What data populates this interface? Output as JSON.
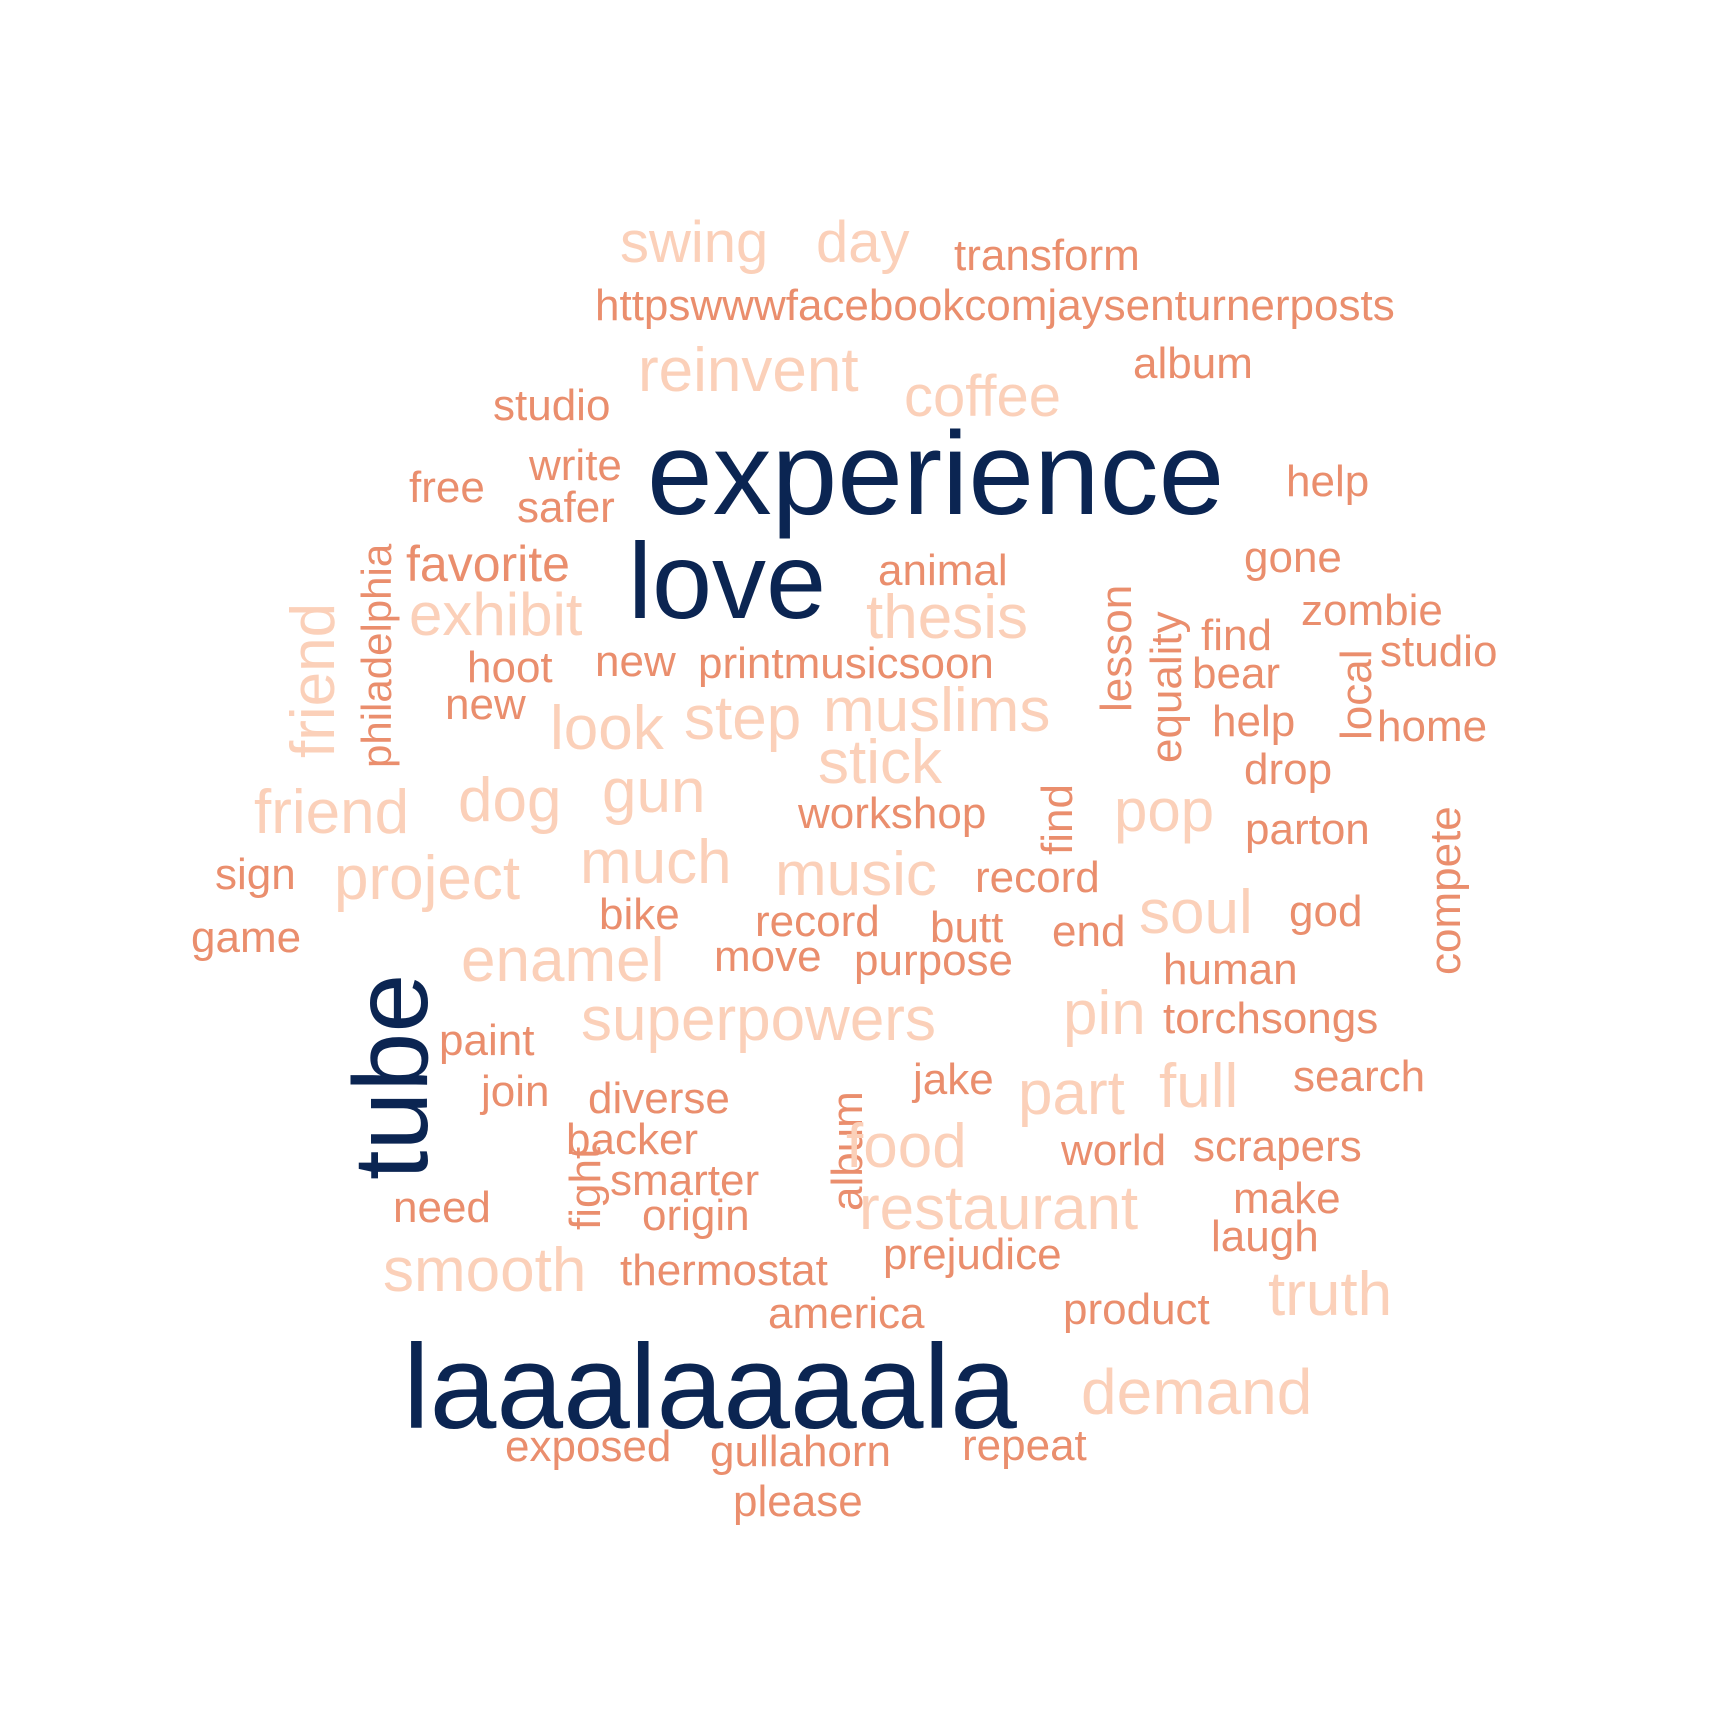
{
  "palette": {
    "dark": "#0b2552",
    "mid": "#ea8e6d",
    "light": "#fbd0b9"
  },
  "words": [
    {
      "text": "experience",
      "tone": "dark"
    },
    {
      "text": "love",
      "tone": "dark"
    },
    {
      "text": "tube",
      "tone": "dark"
    },
    {
      "text": "laaalaaaala",
      "tone": "dark"
    },
    {
      "text": "swing",
      "tone": "light"
    },
    {
      "text": "day",
      "tone": "light"
    },
    {
      "text": "transform",
      "tone": "mid"
    },
    {
      "text": "httpswwwfacebookcomjaysenturnerposts",
      "tone": "mid"
    },
    {
      "text": "reinvent",
      "tone": "light"
    },
    {
      "text": "album",
      "tone": "mid"
    },
    {
      "text": "coffee",
      "tone": "light"
    },
    {
      "text": "studio",
      "tone": "mid"
    },
    {
      "text": "write",
      "tone": "mid"
    },
    {
      "text": "free",
      "tone": "mid"
    },
    {
      "text": "help",
      "tone": "mid"
    },
    {
      "text": "safer",
      "tone": "mid"
    },
    {
      "text": "philadelphia",
      "tone": "mid"
    },
    {
      "text": "favorite",
      "tone": "mid"
    },
    {
      "text": "gone",
      "tone": "mid"
    },
    {
      "text": "animal",
      "tone": "mid"
    },
    {
      "text": "lesson",
      "tone": "mid"
    },
    {
      "text": "equality",
      "tone": "mid"
    },
    {
      "text": "friend",
      "tone": "light"
    },
    {
      "text": "exhibit",
      "tone": "light"
    },
    {
      "text": "thesis",
      "tone": "light"
    },
    {
      "text": "zombie",
      "tone": "mid"
    },
    {
      "text": "find",
      "tone": "mid"
    },
    {
      "text": "local",
      "tone": "mid"
    },
    {
      "text": "studio",
      "tone": "mid"
    },
    {
      "text": "hoot",
      "tone": "mid"
    },
    {
      "text": "new",
      "tone": "mid"
    },
    {
      "text": "printmusicsoon",
      "tone": "mid"
    },
    {
      "text": "bear",
      "tone": "mid"
    },
    {
      "text": "new",
      "tone": "mid"
    },
    {
      "text": "look",
      "tone": "light"
    },
    {
      "text": "step",
      "tone": "light"
    },
    {
      "text": "muslims",
      "tone": "light"
    },
    {
      "text": "help",
      "tone": "mid"
    },
    {
      "text": "home",
      "tone": "mid"
    },
    {
      "text": "stick",
      "tone": "light"
    },
    {
      "text": "drop",
      "tone": "mid"
    },
    {
      "text": "friend",
      "tone": "light"
    },
    {
      "text": "dog",
      "tone": "light"
    },
    {
      "text": "gun",
      "tone": "light"
    },
    {
      "text": "find",
      "tone": "mid"
    },
    {
      "text": "workshop",
      "tone": "mid"
    },
    {
      "text": "pop",
      "tone": "light"
    },
    {
      "text": "compete",
      "tone": "mid"
    },
    {
      "text": "parton",
      "tone": "mid"
    },
    {
      "text": "sign",
      "tone": "mid"
    },
    {
      "text": "project",
      "tone": "light"
    },
    {
      "text": "much",
      "tone": "light"
    },
    {
      "text": "music",
      "tone": "light"
    },
    {
      "text": "record",
      "tone": "mid"
    },
    {
      "text": "soul",
      "tone": "light"
    },
    {
      "text": "god",
      "tone": "mid"
    },
    {
      "text": "game",
      "tone": "mid"
    },
    {
      "text": "bike",
      "tone": "mid"
    },
    {
      "text": "record",
      "tone": "mid"
    },
    {
      "text": "butt",
      "tone": "mid"
    },
    {
      "text": "end",
      "tone": "mid"
    },
    {
      "text": "enamel",
      "tone": "light"
    },
    {
      "text": "move",
      "tone": "mid"
    },
    {
      "text": "purpose",
      "tone": "mid"
    },
    {
      "text": "human",
      "tone": "mid"
    },
    {
      "text": "superpowers",
      "tone": "light"
    },
    {
      "text": "pin",
      "tone": "light"
    },
    {
      "text": "torchsongs",
      "tone": "mid"
    },
    {
      "text": "paint",
      "tone": "mid"
    },
    {
      "text": "join",
      "tone": "mid"
    },
    {
      "text": "diverse",
      "tone": "mid"
    },
    {
      "text": "album",
      "tone": "mid"
    },
    {
      "text": "jake",
      "tone": "mid"
    },
    {
      "text": "part",
      "tone": "light"
    },
    {
      "text": "full",
      "tone": "light"
    },
    {
      "text": "search",
      "tone": "mid"
    },
    {
      "text": "fight",
      "tone": "mid"
    },
    {
      "text": "backer",
      "tone": "mid"
    },
    {
      "text": "food",
      "tone": "light"
    },
    {
      "text": "world",
      "tone": "mid"
    },
    {
      "text": "scrapers",
      "tone": "mid"
    },
    {
      "text": "smarter",
      "tone": "mid"
    },
    {
      "text": "need",
      "tone": "mid"
    },
    {
      "text": "origin",
      "tone": "mid"
    },
    {
      "text": "restaurant",
      "tone": "light"
    },
    {
      "text": "make",
      "tone": "mid"
    },
    {
      "text": "laugh",
      "tone": "mid"
    },
    {
      "text": "smooth",
      "tone": "light"
    },
    {
      "text": "thermostat",
      "tone": "mid"
    },
    {
      "text": "prejudice",
      "tone": "mid"
    },
    {
      "text": "truth",
      "tone": "light"
    },
    {
      "text": "america",
      "tone": "mid"
    },
    {
      "text": "product",
      "tone": "mid"
    },
    {
      "text": "demand",
      "tone": "light"
    },
    {
      "text": "exposed",
      "tone": "mid"
    },
    {
      "text": "gullahorn",
      "tone": "mid"
    },
    {
      "text": "repeat",
      "tone": "mid"
    },
    {
      "text": "please",
      "tone": "mid"
    }
  ]
}
